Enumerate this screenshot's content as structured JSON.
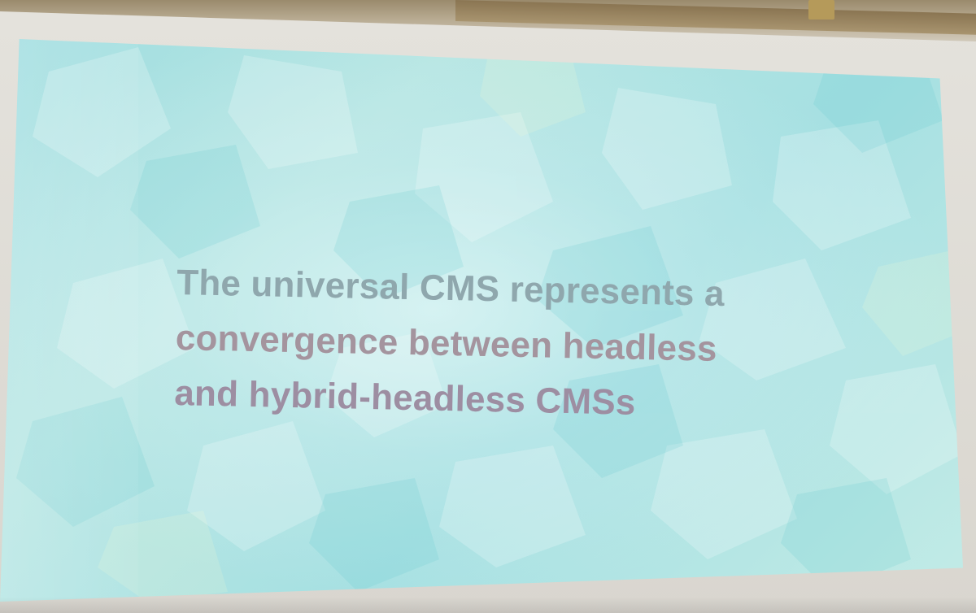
{
  "slide": {
    "headline_lines": [
      "The universal CMS represents a",
      "convergence between headless",
      "and hybrid-headless CMSs"
    ]
  },
  "colors": {
    "slide_background": "#a6e0e2",
    "headline_text": "#9e9aa6",
    "screen_frame": "#e4e2dc",
    "ceiling_wood": "#a8946f"
  }
}
